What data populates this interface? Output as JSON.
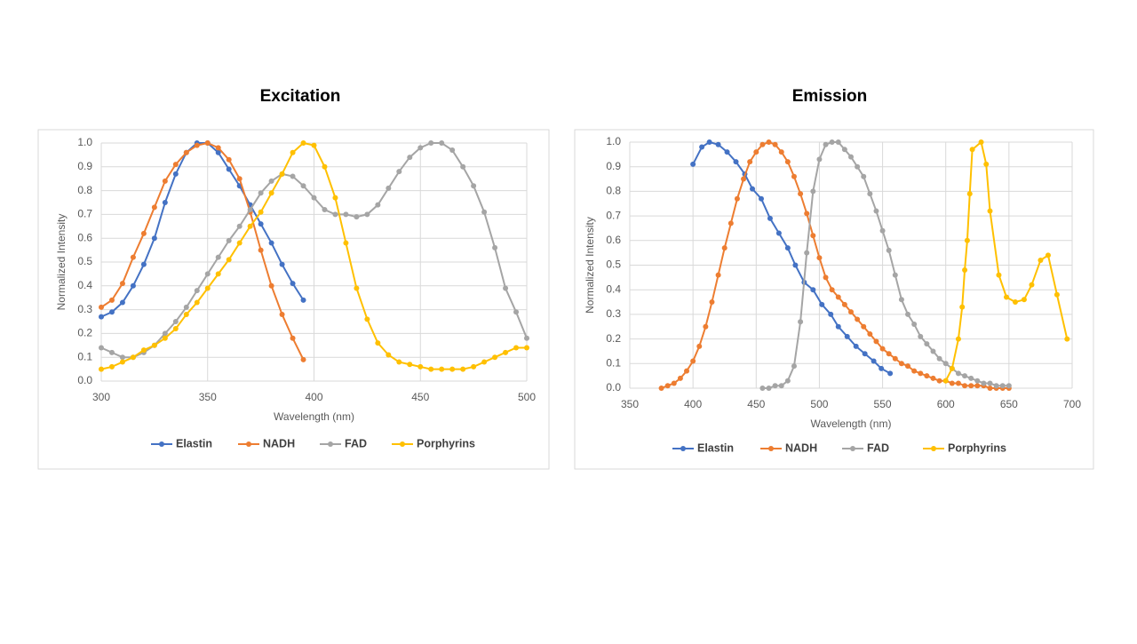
{
  "chart_data": [
    {
      "type": "line",
      "title": "Excitation",
      "x_label": "Wavelength (nm)",
      "y_label": "Normalized Intensity",
      "xlim": [
        300,
        500
      ],
      "xticks": [
        300,
        350,
        400,
        450,
        500
      ],
      "ylim": [
        0,
        1
      ],
      "yticks": [
        {
          "value": 0,
          "label": "0.0"
        },
        0.1,
        0.2,
        0.3,
        0.4,
        0.5,
        0.6,
        0.7,
        0.8,
        0.9,
        {
          "value": 1,
          "label": "1.0"
        }
      ],
      "grid": true,
      "legend": "bottom",
      "series": [
        {
          "name": "Elastin",
          "color": "#4472c4",
          "x": [
            300,
            305,
            310,
            315,
            320,
            325,
            330,
            335,
            340,
            345,
            350,
            355,
            360,
            365,
            370,
            375,
            380,
            385,
            390,
            395
          ],
          "values": [
            0.27,
            0.29,
            0.33,
            0.4,
            0.49,
            0.6,
            0.75,
            0.87,
            0.96,
            1.0,
            1.0,
            0.96,
            0.89,
            0.82,
            0.74,
            0.66,
            0.58,
            0.49,
            0.41,
            0.34
          ]
        },
        {
          "name": "NADH",
          "color": "#ed7d31",
          "x": [
            300,
            305,
            310,
            315,
            320,
            325,
            330,
            335,
            340,
            345,
            350,
            355,
            360,
            365,
            370,
            375,
            380,
            385,
            390,
            395
          ],
          "values": [
            0.31,
            0.34,
            0.41,
            0.52,
            0.62,
            0.73,
            0.84,
            0.91,
            0.96,
            0.99,
            1.0,
            0.98,
            0.93,
            0.85,
            0.71,
            0.55,
            0.4,
            0.28,
            0.18,
            0.09
          ]
        },
        {
          "name": "FAD",
          "color": "#a5a5a5",
          "x": [
            300,
            305,
            310,
            315,
            320,
            325,
            330,
            335,
            340,
            345,
            350,
            355,
            360,
            365,
            370,
            375,
            380,
            385,
            390,
            395,
            400,
            405,
            410,
            415,
            420,
            425,
            430,
            435,
            440,
            445,
            450,
            455,
            460,
            465,
            470,
            475,
            480,
            485,
            490,
            495,
            500
          ],
          "values": [
            0.14,
            0.12,
            0.1,
            0.1,
            0.12,
            0.15,
            0.2,
            0.25,
            0.31,
            0.38,
            0.45,
            0.52,
            0.59,
            0.65,
            0.72,
            0.79,
            0.84,
            0.87,
            0.86,
            0.82,
            0.77,
            0.72,
            0.7,
            0.7,
            0.69,
            0.7,
            0.74,
            0.81,
            0.88,
            0.94,
            0.98,
            1.0,
            1.0,
            0.97,
            0.9,
            0.82,
            0.71,
            0.56,
            0.39,
            0.29,
            0.18
          ]
        },
        {
          "name": "Porphyrins",
          "color": "#ffc000",
          "x": [
            300,
            305,
            310,
            315,
            320,
            325,
            330,
            335,
            340,
            345,
            350,
            355,
            360,
            365,
            370,
            375,
            380,
            385,
            390,
            395,
            400,
            405,
            410,
            415,
            420,
            425,
            430,
            435,
            440,
            445,
            450,
            455,
            460,
            465,
            470,
            475,
            480,
            485,
            490,
            495,
            500
          ],
          "values": [
            0.05,
            0.06,
            0.08,
            0.1,
            0.13,
            0.15,
            0.18,
            0.22,
            0.28,
            0.33,
            0.39,
            0.45,
            0.51,
            0.58,
            0.65,
            0.71,
            0.79,
            0.87,
            0.96,
            1.0,
            0.99,
            0.9,
            0.77,
            0.58,
            0.39,
            0.26,
            0.16,
            0.11,
            0.08,
            0.07,
            0.06,
            0.05,
            0.05,
            0.05,
            0.05,
            0.06,
            0.08,
            0.1,
            0.12,
            0.14,
            0.14
          ]
        }
      ]
    },
    {
      "type": "line",
      "title": "Emission",
      "x_label": "Wavelength (nm)",
      "y_label": "Normalized Intensity",
      "xlim": [
        350,
        700
      ],
      "xticks": [
        350,
        400,
        450,
        500,
        550,
        600,
        650,
        700
      ],
      "ylim": [
        0,
        1
      ],
      "yticks": [
        {
          "value": 0,
          "label": "0.0"
        },
        0.1,
        0.2,
        0.3,
        0.4,
        0.5,
        0.6,
        0.7,
        0.8,
        0.9,
        {
          "value": 1,
          "label": "1.0"
        }
      ],
      "grid": true,
      "legend": "bottom",
      "series": [
        {
          "name": "Elastin",
          "color": "#4472c4",
          "x": [
            400,
            407,
            413,
            420,
            427,
            434,
            441,
            447,
            454,
            461,
            468,
            475,
            481,
            488,
            495,
            502,
            509,
            515,
            522,
            529,
            536,
            543,
            549,
            556
          ],
          "values": [
            0.91,
            0.98,
            1.0,
            0.99,
            0.96,
            0.92,
            0.87,
            0.81,
            0.77,
            0.69,
            0.63,
            0.57,
            0.5,
            0.43,
            0.4,
            0.34,
            0.3,
            0.25,
            0.21,
            0.17,
            0.14,
            0.11,
            0.08,
            0.06
          ]
        },
        {
          "name": "NADH",
          "color": "#ed7d31",
          "x": [
            375,
            380,
            385,
            390,
            395,
            400,
            405,
            410,
            415,
            420,
            425,
            430,
            435,
            440,
            445,
            450,
            455,
            460,
            465,
            470,
            475,
            480,
            485,
            490,
            495,
            500,
            505,
            510,
            515,
            520,
            525,
            530,
            535,
            540,
            545,
            550,
            555,
            560,
            565,
            570,
            575,
            580,
            585,
            590,
            595,
            600,
            605,
            610,
            615,
            620,
            625,
            630,
            635,
            640,
            645,
            650
          ],
          "values": [
            0.0,
            0.01,
            0.02,
            0.04,
            0.07,
            0.11,
            0.17,
            0.25,
            0.35,
            0.46,
            0.57,
            0.67,
            0.77,
            0.85,
            0.92,
            0.96,
            0.99,
            1.0,
            0.99,
            0.96,
            0.92,
            0.86,
            0.79,
            0.71,
            0.62,
            0.53,
            0.45,
            0.4,
            0.37,
            0.34,
            0.31,
            0.28,
            0.25,
            0.22,
            0.19,
            0.16,
            0.14,
            0.12,
            0.1,
            0.09,
            0.07,
            0.06,
            0.05,
            0.04,
            0.03,
            0.03,
            0.02,
            0.02,
            0.01,
            0.01,
            0.01,
            0.01,
            0.0,
            0.0,
            0.0,
            0.0
          ]
        },
        {
          "name": "FAD",
          "color": "#a5a5a5",
          "x": [
            455,
            460,
            465,
            470,
            475,
            480,
            485,
            490,
            495,
            500,
            505,
            510,
            515,
            520,
            525,
            530,
            535,
            540,
            545,
            550,
            555,
            560,
            565,
            570,
            575,
            580,
            585,
            590,
            595,
            600,
            605,
            610,
            615,
            620,
            625,
            630,
            635,
            640,
            645,
            650
          ],
          "values": [
            0.0,
            0.0,
            0.01,
            0.01,
            0.03,
            0.09,
            0.27,
            0.55,
            0.8,
            0.93,
            0.99,
            1.0,
            1.0,
            0.97,
            0.94,
            0.9,
            0.86,
            0.79,
            0.72,
            0.64,
            0.56,
            0.46,
            0.36,
            0.3,
            0.26,
            0.21,
            0.18,
            0.15,
            0.12,
            0.1,
            0.08,
            0.06,
            0.05,
            0.04,
            0.03,
            0.02,
            0.02,
            0.01,
            0.01,
            0.01
          ]
        },
        {
          "name": "Porphyrins",
          "color": "#ffc000",
          "x": [
            600,
            605,
            610,
            613,
            615,
            617,
            619,
            621,
            628,
            632,
            635,
            642,
            648,
            655,
            662,
            668,
            675,
            681,
            688,
            696
          ],
          "values": [
            0.03,
            0.08,
            0.2,
            0.33,
            0.48,
            0.6,
            0.79,
            0.97,
            1.0,
            0.91,
            0.72,
            0.46,
            0.37,
            0.35,
            0.36,
            0.42,
            0.52,
            0.54,
            0.38,
            0.2
          ]
        }
      ]
    }
  ]
}
